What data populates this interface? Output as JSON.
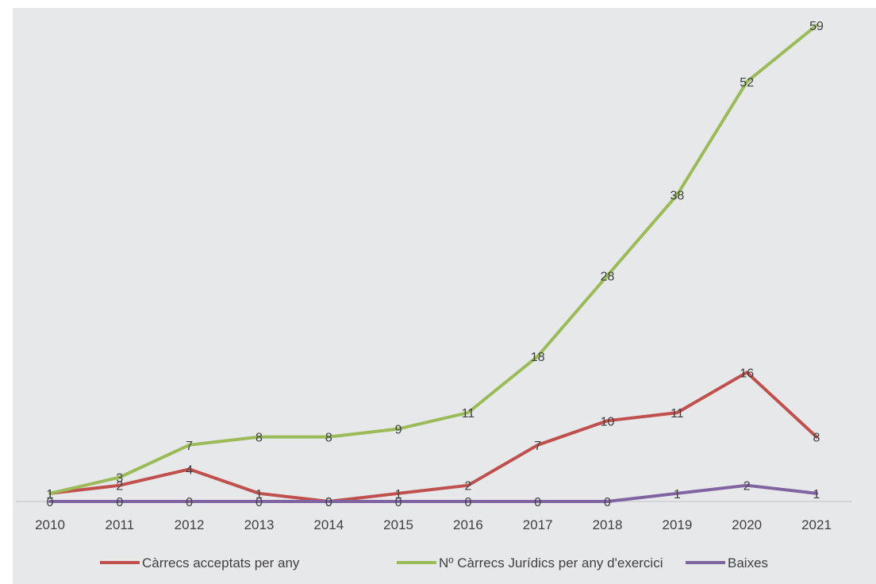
{
  "chart_data": {
    "type": "line",
    "title": "",
    "xlabel": "",
    "ylabel": "",
    "categories": [
      "2010",
      "2011",
      "2012",
      "2013",
      "2014",
      "2015",
      "2016",
      "2017",
      "2018",
      "2019",
      "2020",
      "2021"
    ],
    "ylim": [
      0,
      59
    ],
    "grid": false,
    "legend_position": "bottom",
    "series": [
      {
        "name": "Càrrecs acceptats per any",
        "color": "#c0504d",
        "values": [
          1,
          2,
          4,
          1,
          0,
          1,
          2,
          7,
          10,
          11,
          16,
          8
        ]
      },
      {
        "name": "Nº Càrrecs Jurídics per any d'exercici",
        "color": "#9bbb59",
        "values": [
          1,
          3,
          7,
          8,
          8,
          9,
          11,
          18,
          28,
          38,
          52,
          59
        ]
      },
      {
        "name": "Baixes",
        "color": "#8064a2",
        "values": [
          0,
          0,
          0,
          0,
          0,
          0,
          0,
          0,
          0,
          1,
          2,
          1
        ]
      }
    ]
  }
}
